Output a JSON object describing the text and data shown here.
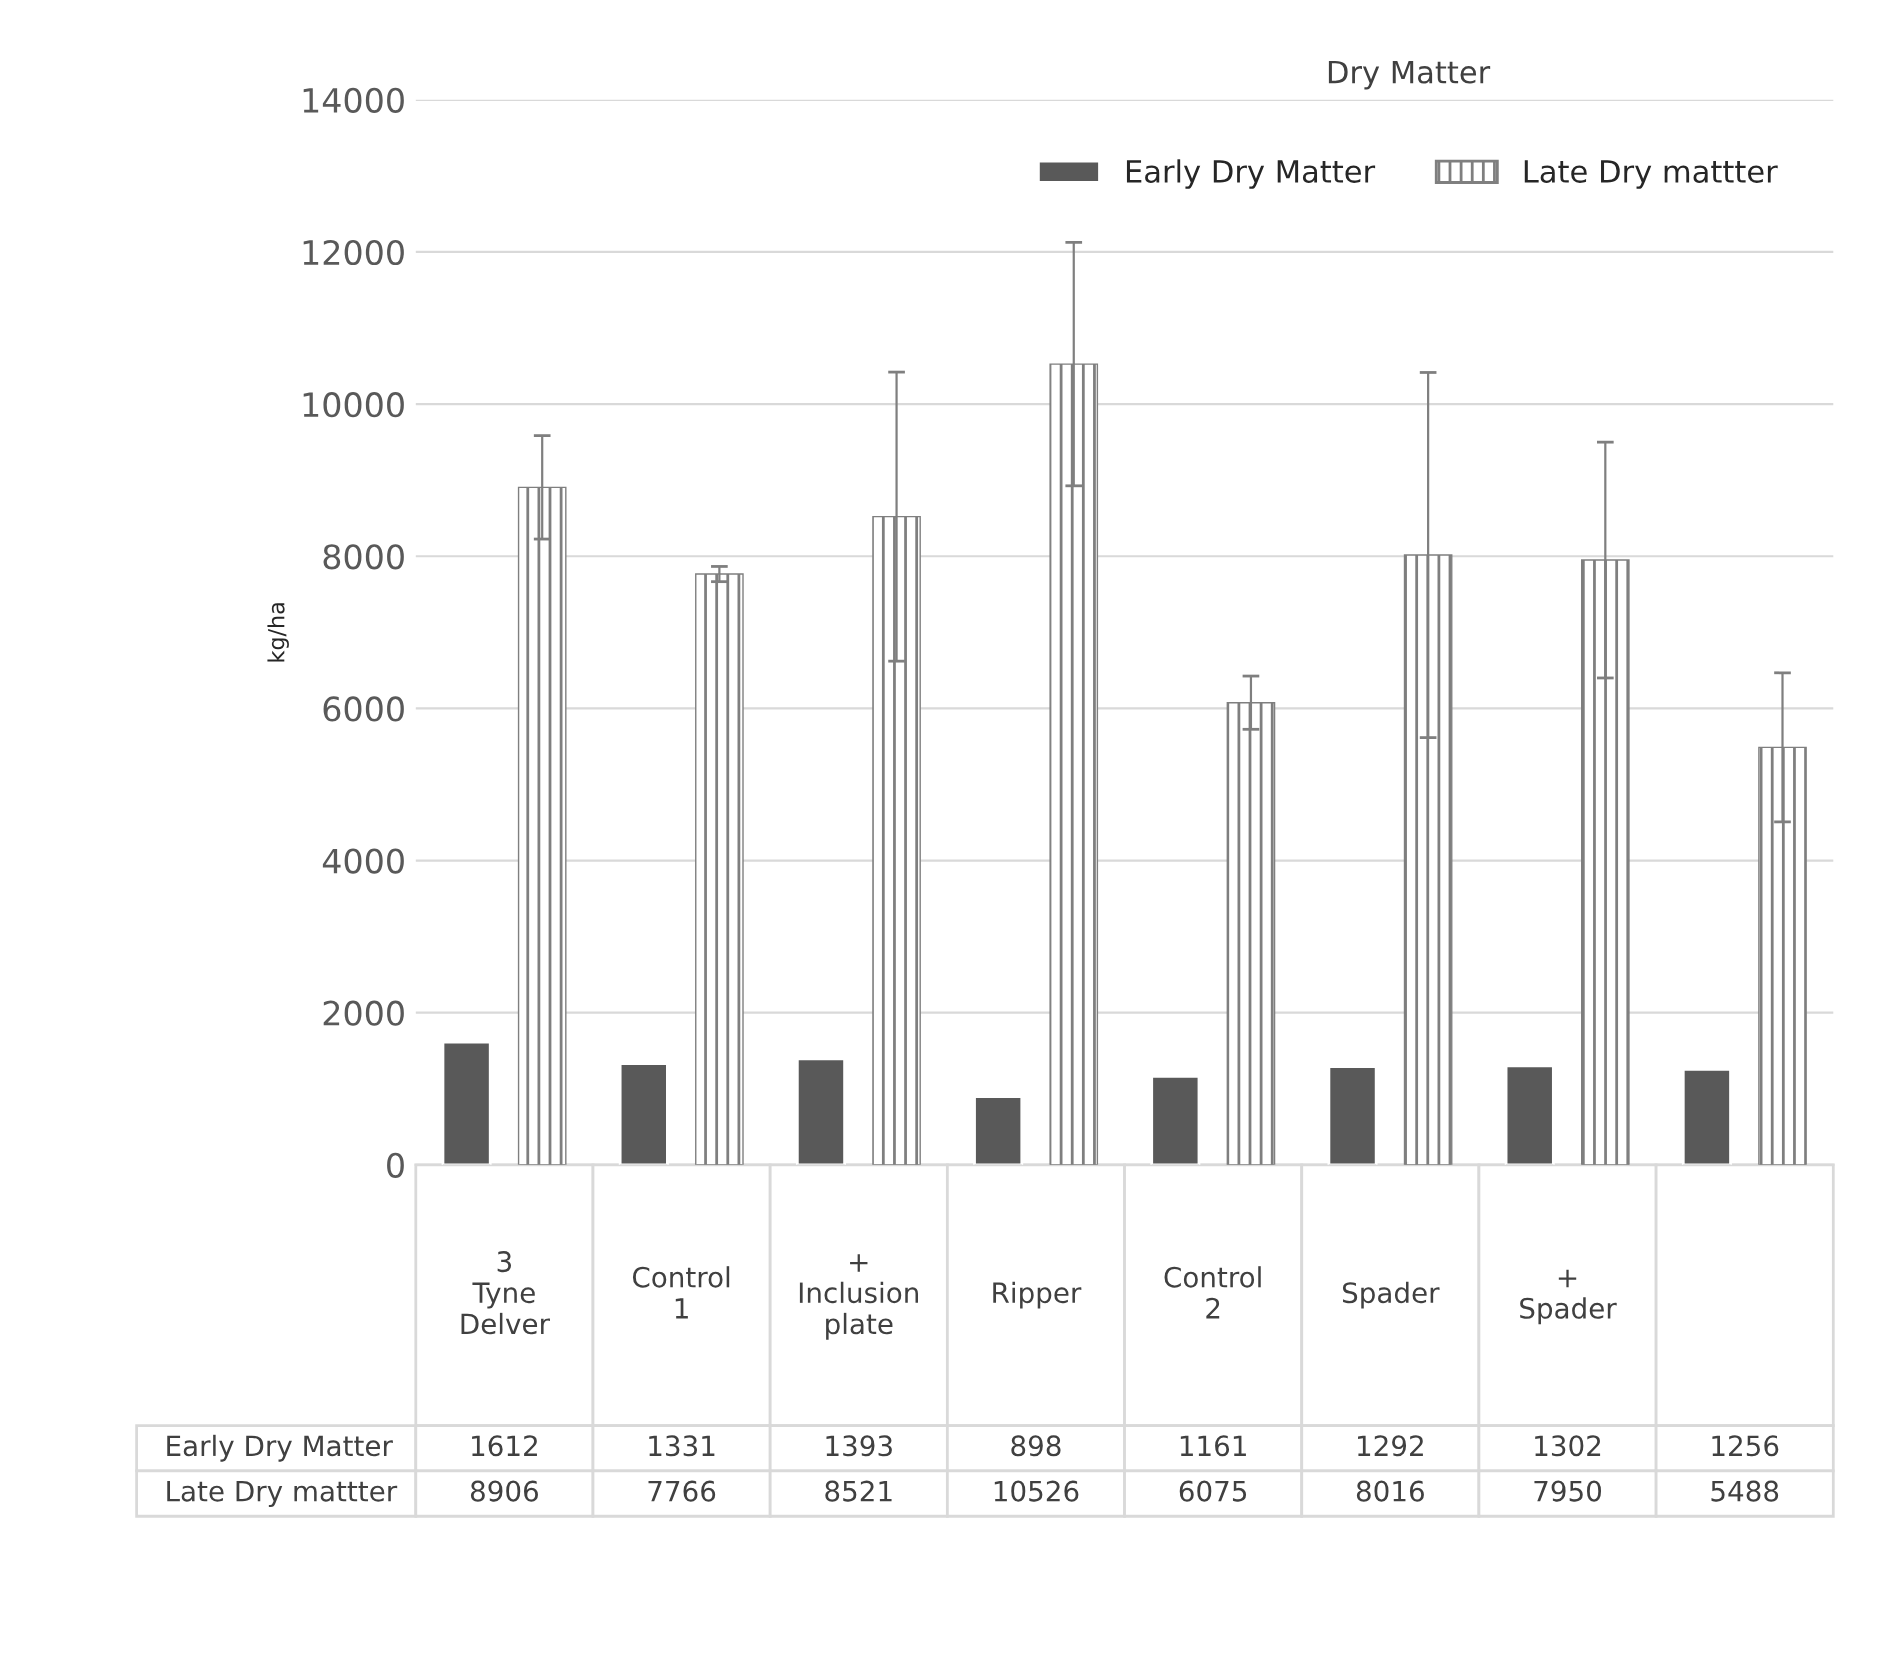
{
  "chart_data": {
    "type": "bar",
    "title": "Dry Matter",
    "ylabel": "kg/ha",
    "categories": [
      "3 Tyne Delver",
      "Control 1",
      "+ Inclusion plate",
      "Ripper",
      "Control 2",
      "Spader",
      "+ Spader",
      null
    ],
    "series": [
      {
        "name": "Early Dry Matter",
        "color": "#595959",
        "values": [
          1612,
          1331,
          1393,
          898,
          1161,
          1292,
          1302,
          1256
        ]
      },
      {
        "name": "Late Dry mattter",
        "color": "#7f7f7f",
        "values": [
          8906,
          7766,
          8521,
          10526,
          6075,
          8016,
          7950,
          5488
        ],
        "errors": [
          680,
          100,
          1900,
          1600,
          350,
          2400,
          1550,
          980
        ]
      }
    ],
    "ylim": [
      0,
      14000
    ],
    "yticks": [
      0,
      2000,
      4000,
      6000,
      8000,
      10000,
      12000,
      14000
    ],
    "grid": "y",
    "legend": "top",
    "data_labels": true
  }
}
